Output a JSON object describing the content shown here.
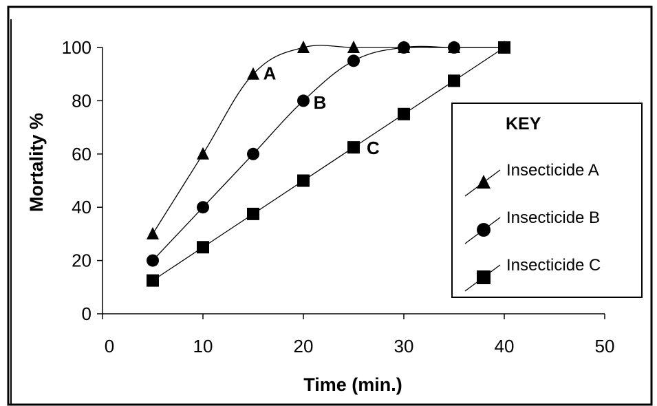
{
  "chart_data": {
    "type": "line",
    "xlabel": "Time (min.)",
    "ylabel": "Mortality %",
    "xlim": [
      0,
      50
    ],
    "ylim": [
      0,
      100
    ],
    "x_ticks": [
      0,
      10,
      20,
      30,
      40,
      50
    ],
    "y_ticks": [
      0,
      20,
      40,
      60,
      80,
      100
    ],
    "grid": false,
    "legend_position": "right",
    "legend_title": "KEY",
    "series": [
      {
        "name": "Insecticide A",
        "label": "A",
        "marker": "triangle",
        "x": [
          5,
          10,
          15,
          20,
          25,
          30,
          35,
          40
        ],
        "y": [
          30,
          60,
          90,
          100,
          100,
          100,
          100,
          100
        ]
      },
      {
        "name": "Insecticide B",
        "label": "B",
        "marker": "circle",
        "x": [
          5,
          10,
          15,
          20,
          25,
          30,
          35,
          40
        ],
        "y": [
          20,
          40,
          60,
          80,
          95,
          100,
          100,
          100
        ]
      },
      {
        "name": "Insecticide C",
        "label": "C",
        "marker": "square",
        "x": [
          5,
          10,
          15,
          20,
          25,
          30,
          35,
          40
        ],
        "y": [
          12.5,
          25,
          37.5,
          50,
          62.5,
          75,
          87.5,
          100
        ]
      }
    ]
  }
}
